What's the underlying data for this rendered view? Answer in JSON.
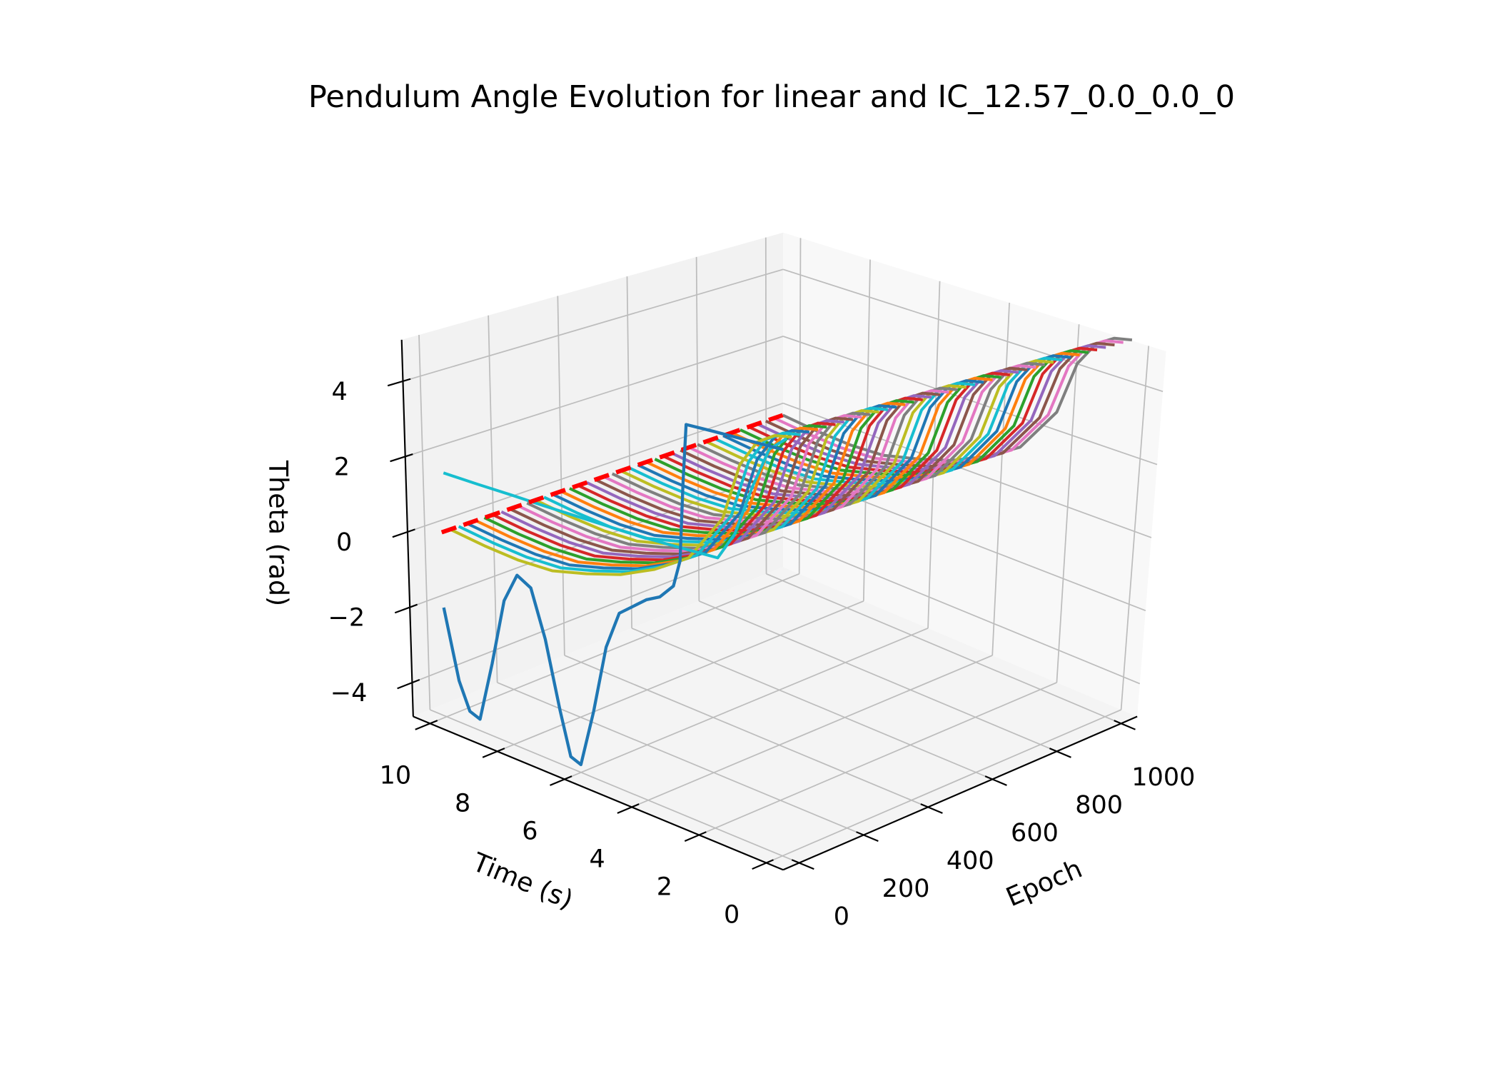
{
  "chart_data": {
    "type": "line3d",
    "title": "Pendulum Angle Evolution for linear and IC_12.57_0.0_0.0_0",
    "xlabel": "Epoch",
    "ylabel": "Time (s)",
    "zlabel": "Theta (rad)",
    "xlim": [
      -50,
      1050
    ],
    "xticks": [
      0,
      200,
      400,
      600,
      800,
      1000
    ],
    "ylim": [
      -0.5,
      10.5
    ],
    "yticks": [
      0,
      2,
      4,
      6,
      8,
      10
    ],
    "zlim": [
      -4.9,
      5.1
    ],
    "zticks": [
      {
        "value": -4,
        "label": "−4"
      },
      {
        "value": -2,
        "label": "−2"
      },
      0,
      2,
      4
    ],
    "grid": true,
    "time": [
      0,
      0.5,
      1,
      1.5,
      2,
      3,
      4,
      5,
      6,
      7,
      8,
      9,
      10
    ],
    "reference": {
      "color": "#ff0000",
      "style": "dashed",
      "epochs": [
        0,
        1000
      ],
      "time": 10,
      "values": [
        0,
        0
      ]
    },
    "series": [
      {
        "epoch": 0,
        "color": "#1f77b4",
        "time": [
          0,
          1,
          2,
          2.8,
          2.9,
          3.0,
          3.2,
          3.6,
          4.0,
          4.4,
          4.8,
          5.2,
          5.6,
          6.0,
          6.3,
          6.6,
          7.0,
          7.4,
          7.8,
          8.2,
          8.6,
          9.0,
          9.3,
          9.6,
          10
        ],
        "values": [
          5.15,
          5.1,
          5.05,
          5.0,
          3.5,
          1.5,
          0.8,
          0.4,
          0.2,
          -0.1,
          -0.4,
          -1.4,
          -3.2,
          -4.7,
          -4.6,
          -3.5,
          -1.8,
          -0.6,
          -0.4,
          -1.2,
          -3.0,
          -4.6,
          -4.5,
          -3.8,
          -2.0
        ]
      },
      {
        "epoch": 10,
        "color": "#17becf",
        "values": [
          5.4,
          5.0,
          3.9,
          2.6,
          1.85,
          1.78,
          1.72,
          1.68,
          1.65,
          1.62,
          1.6,
          1.57,
          1.55
        ]
      },
      {
        "epoch": 25,
        "color": "#bcbd22",
        "values": [
          5.4,
          5.3,
          5.0,
          4.3,
          2.8,
          1.5,
          0.9,
          0.45,
          0.15,
          -0.1,
          -0.15,
          -0.1,
          0
        ]
      },
      {
        "epoch": 50,
        "color": "#17becf",
        "values": [
          5.4,
          5.3,
          5.0,
          4.3,
          2.8,
          1.5,
          0.9,
          0.45,
          0.15,
          -0.1,
          -0.15,
          -0.1,
          0
        ]
      },
      {
        "epoch": 75,
        "color": "#1f77b4",
        "values": [
          5.4,
          5.3,
          5.0,
          4.3,
          2.8,
          1.5,
          0.9,
          0.45,
          0.15,
          -0.1,
          -0.15,
          -0.1,
          0
        ]
      },
      {
        "epoch": 100,
        "color": "#ff7f0e",
        "values": [
          5.4,
          5.3,
          5.0,
          4.3,
          2.8,
          1.5,
          0.9,
          0.45,
          0.15,
          -0.1,
          -0.15,
          -0.1,
          0
        ]
      },
      {
        "epoch": 125,
        "color": "#2ca02c",
        "values": [
          5.4,
          5.3,
          5.0,
          4.3,
          2.8,
          1.5,
          0.9,
          0.45,
          0.15,
          -0.1,
          -0.15,
          -0.1,
          0
        ]
      },
      {
        "epoch": 150,
        "color": "#d62728",
        "values": [
          5.4,
          5.3,
          5.0,
          4.3,
          2.8,
          1.5,
          0.9,
          0.45,
          0.15,
          -0.1,
          -0.15,
          -0.1,
          0
        ]
      },
      {
        "epoch": 175,
        "color": "#9467bd",
        "values": [
          5.4,
          5.3,
          5.0,
          4.3,
          2.8,
          1.5,
          0.9,
          0.45,
          0.15,
          -0.1,
          -0.15,
          -0.1,
          0
        ]
      },
      {
        "epoch": 200,
        "color": "#8c564b",
        "values": [
          5.4,
          5.3,
          5.0,
          4.3,
          2.8,
          1.5,
          0.9,
          0.45,
          0.15,
          -0.1,
          -0.15,
          -0.1,
          0
        ]
      },
      {
        "epoch": 225,
        "color": "#e377c2",
        "values": [
          5.4,
          5.3,
          5.0,
          4.3,
          2.8,
          1.5,
          0.9,
          0.45,
          0.15,
          -0.1,
          -0.15,
          -0.1,
          0
        ]
      },
      {
        "epoch": 250,
        "color": "#7f7f7f",
        "values": [
          5.4,
          5.3,
          5.0,
          4.3,
          2.8,
          1.5,
          0.9,
          0.45,
          0.15,
          -0.1,
          -0.15,
          -0.1,
          0
        ]
      },
      {
        "epoch": 275,
        "color": "#bcbd22",
        "values": [
          5.4,
          5.3,
          5.0,
          4.3,
          2.8,
          1.5,
          0.9,
          0.45,
          0.15,
          -0.1,
          -0.15,
          -0.1,
          0
        ]
      },
      {
        "epoch": 300,
        "color": "#17becf",
        "values": [
          5.4,
          5.3,
          5.0,
          4.3,
          2.8,
          1.5,
          0.9,
          0.45,
          0.15,
          -0.1,
          -0.15,
          -0.1,
          0
        ]
      },
      {
        "epoch": 325,
        "color": "#1f77b4",
        "values": [
          5.4,
          5.3,
          5.0,
          4.3,
          2.8,
          1.5,
          0.9,
          0.45,
          0.15,
          -0.1,
          -0.15,
          -0.1,
          0
        ]
      },
      {
        "epoch": 350,
        "color": "#ff7f0e",
        "values": [
          5.4,
          5.3,
          5.0,
          4.3,
          2.8,
          1.5,
          0.9,
          0.45,
          0.15,
          -0.1,
          -0.15,
          -0.1,
          0
        ]
      },
      {
        "epoch": 375,
        "color": "#2ca02c",
        "values": [
          5.4,
          5.3,
          5.0,
          4.3,
          2.8,
          1.5,
          0.9,
          0.45,
          0.15,
          -0.1,
          -0.15,
          -0.1,
          0
        ]
      },
      {
        "epoch": 400,
        "color": "#d62728",
        "values": [
          5.4,
          5.3,
          5.0,
          4.3,
          2.8,
          1.5,
          0.9,
          0.45,
          0.15,
          -0.1,
          -0.15,
          -0.1,
          0
        ]
      },
      {
        "epoch": 425,
        "color": "#9467bd",
        "values": [
          5.4,
          5.3,
          5.0,
          4.3,
          2.8,
          1.5,
          0.9,
          0.45,
          0.15,
          -0.1,
          -0.15,
          -0.1,
          0
        ]
      },
      {
        "epoch": 450,
        "color": "#8c564b",
        "values": [
          5.4,
          5.3,
          5.0,
          4.3,
          2.8,
          1.5,
          0.9,
          0.45,
          0.15,
          -0.1,
          -0.15,
          -0.1,
          0
        ]
      },
      {
        "epoch": 475,
        "color": "#e377c2",
        "values": [
          5.4,
          5.3,
          5.0,
          4.3,
          2.8,
          1.5,
          0.9,
          0.45,
          0.15,
          -0.1,
          -0.15,
          -0.1,
          0
        ]
      },
      {
        "epoch": 500,
        "color": "#7f7f7f",
        "values": [
          5.4,
          5.3,
          5.0,
          4.3,
          2.8,
          1.5,
          0.9,
          0.45,
          0.15,
          -0.1,
          -0.15,
          -0.1,
          0
        ]
      },
      {
        "epoch": 525,
        "color": "#bcbd22",
        "values": [
          5.4,
          5.3,
          5.0,
          4.3,
          2.8,
          1.5,
          0.9,
          0.45,
          0.15,
          -0.1,
          -0.15,
          -0.1,
          0
        ]
      },
      {
        "epoch": 550,
        "color": "#17becf",
        "values": [
          5.4,
          5.3,
          5.0,
          4.3,
          2.8,
          1.5,
          0.9,
          0.45,
          0.15,
          -0.1,
          -0.15,
          -0.1,
          0
        ]
      },
      {
        "epoch": 575,
        "color": "#1f77b4",
        "values": [
          5.4,
          5.3,
          5.0,
          4.3,
          2.8,
          1.5,
          0.9,
          0.45,
          0.15,
          -0.1,
          -0.15,
          -0.1,
          0
        ]
      },
      {
        "epoch": 600,
        "color": "#ff7f0e",
        "values": [
          5.4,
          5.3,
          5.0,
          4.3,
          2.8,
          1.5,
          0.9,
          0.45,
          0.15,
          -0.1,
          -0.15,
          -0.1,
          0
        ]
      },
      {
        "epoch": 625,
        "color": "#2ca02c",
        "values": [
          5.4,
          5.3,
          5.0,
          4.3,
          2.8,
          1.5,
          0.9,
          0.45,
          0.15,
          -0.1,
          -0.15,
          -0.1,
          0
        ]
      },
      {
        "epoch": 650,
        "color": "#d62728",
        "values": [
          5.4,
          5.3,
          5.0,
          4.3,
          2.8,
          1.5,
          0.9,
          0.45,
          0.15,
          -0.1,
          -0.15,
          -0.1,
          0
        ]
      },
      {
        "epoch": 675,
        "color": "#9467bd",
        "values": [
          5.4,
          5.3,
          5.0,
          4.3,
          2.8,
          1.5,
          0.9,
          0.45,
          0.15,
          -0.1,
          -0.15,
          -0.1,
          0
        ]
      },
      {
        "epoch": 700,
        "color": "#8c564b",
        "values": [
          5.4,
          5.3,
          5.0,
          4.3,
          2.8,
          1.5,
          0.9,
          0.45,
          0.15,
          -0.1,
          -0.15,
          -0.1,
          0
        ]
      },
      {
        "epoch": 725,
        "color": "#e377c2",
        "values": [
          5.4,
          5.3,
          5.0,
          4.3,
          2.8,
          1.5,
          0.9,
          0.45,
          0.15,
          -0.1,
          -0.15,
          -0.1,
          0
        ]
      },
      {
        "epoch": 750,
        "color": "#7f7f7f",
        "values": [
          5.4,
          5.3,
          5.0,
          4.3,
          2.8,
          1.5,
          0.9,
          0.45,
          0.15,
          -0.1,
          -0.15,
          -0.1,
          0
        ]
      },
      {
        "epoch": 775,
        "color": "#bcbd22",
        "values": [
          5.4,
          5.3,
          5.0,
          4.3,
          2.8,
          1.5,
          0.9,
          0.45,
          0.15,
          -0.1,
          -0.15,
          -0.1,
          0
        ]
      },
      {
        "epoch": 800,
        "color": "#17becf",
        "values": [
          5.4,
          5.3,
          5.0,
          4.3,
          2.8,
          1.5,
          0.9,
          0.45,
          0.15,
          -0.1,
          -0.15,
          -0.1,
          0
        ]
      },
      {
        "epoch": 825,
        "color": "#1f77b4",
        "values": [
          5.4,
          5.3,
          5.0,
          4.3,
          2.8,
          1.5,
          0.9,
          0.45,
          0.15,
          -0.1,
          -0.15,
          -0.1,
          0
        ]
      },
      {
        "epoch": 850,
        "color": "#ff7f0e",
        "values": [
          5.4,
          5.3,
          5.0,
          4.3,
          2.8,
          1.5,
          0.9,
          0.45,
          0.15,
          -0.1,
          -0.15,
          -0.1,
          0
        ]
      },
      {
        "epoch": 875,
        "color": "#2ca02c",
        "values": [
          5.4,
          5.3,
          5.0,
          4.3,
          2.8,
          1.5,
          0.9,
          0.45,
          0.15,
          -0.1,
          -0.15,
          -0.1,
          0
        ]
      },
      {
        "epoch": 900,
        "color": "#d62728",
        "values": [
          5.4,
          5.3,
          5.0,
          4.3,
          2.8,
          1.5,
          0.9,
          0.45,
          0.15,
          -0.1,
          -0.15,
          -0.1,
          0
        ]
      },
      {
        "epoch": 925,
        "color": "#9467bd",
        "values": [
          5.4,
          5.3,
          5.0,
          4.3,
          2.8,
          1.5,
          0.9,
          0.45,
          0.15,
          -0.1,
          -0.15,
          -0.1,
          0
        ]
      },
      {
        "epoch": 950,
        "color": "#8c564b",
        "values": [
          5.4,
          5.3,
          5.0,
          4.3,
          2.8,
          1.5,
          0.9,
          0.45,
          0.15,
          -0.1,
          -0.15,
          -0.1,
          0
        ]
      },
      {
        "epoch": 975,
        "color": "#e377c2",
        "values": [
          5.4,
          5.3,
          5.0,
          4.3,
          2.8,
          1.5,
          0.9,
          0.45,
          0.15,
          -0.1,
          -0.15,
          -0.1,
          0
        ]
      },
      {
        "epoch": 1000,
        "color": "#7f7f7f",
        "values": [
          5.4,
          5.3,
          5.0,
          4.3,
          2.8,
          1.5,
          0.9,
          0.45,
          0.15,
          -0.1,
          -0.15,
          -0.1,
          0
        ]
      }
    ]
  }
}
